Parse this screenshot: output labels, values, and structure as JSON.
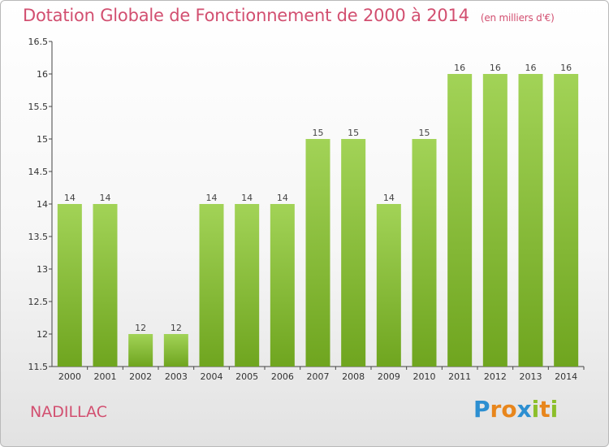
{
  "title": "Dotation Globale de Fonctionnement de 2000 à 2014",
  "unit_note": "(en milliers d'€)",
  "commune": "NADILLAC",
  "logo": {
    "text": "Proxiti",
    "letters": [
      {
        "ch": "P",
        "color": "#2c8fd1"
      },
      {
        "ch": "r",
        "color": "#e8861c"
      },
      {
        "ch": "o",
        "color": "#e8861c"
      },
      {
        "ch": "x",
        "color": "#2c8fd1"
      },
      {
        "ch": "i",
        "color": "#8cbf2a"
      },
      {
        "ch": "t",
        "color": "#e8861c"
      },
      {
        "ch": "i",
        "color": "#8cbf2a"
      }
    ]
  },
  "chart_data": {
    "type": "bar",
    "categories": [
      "2000",
      "2001",
      "2002",
      "2003",
      "2004",
      "2005",
      "2006",
      "2007",
      "2008",
      "2009",
      "2010",
      "2011",
      "2012",
      "2013",
      "2014"
    ],
    "values": [
      14,
      14,
      12,
      12,
      14,
      14,
      14,
      15,
      15,
      14,
      15,
      16,
      16,
      16,
      16
    ],
    "data_labels": [
      "14",
      "14",
      "12",
      "12",
      "14",
      "14",
      "14",
      "15",
      "15",
      "14",
      "15",
      "16",
      "16",
      "16",
      "16"
    ],
    "title": "Dotation Globale de Fonctionnement de 2000 à 2014",
    "xlabel": "",
    "ylabel": "",
    "ylim": [
      11.5,
      16.5
    ],
    "yticks": [
      11.5,
      12,
      12.5,
      13,
      13.5,
      14,
      14.5,
      15,
      15.5,
      16,
      16.5
    ],
    "ytick_labels": [
      "11.5",
      "12",
      "12.5",
      "13",
      "13.5",
      "14",
      "14.5",
      "15",
      "15.5",
      "16",
      "16.5"
    ],
    "grid": false,
    "bar_color": "#7fb52a",
    "bar_color_light": "#9ccf4e"
  }
}
